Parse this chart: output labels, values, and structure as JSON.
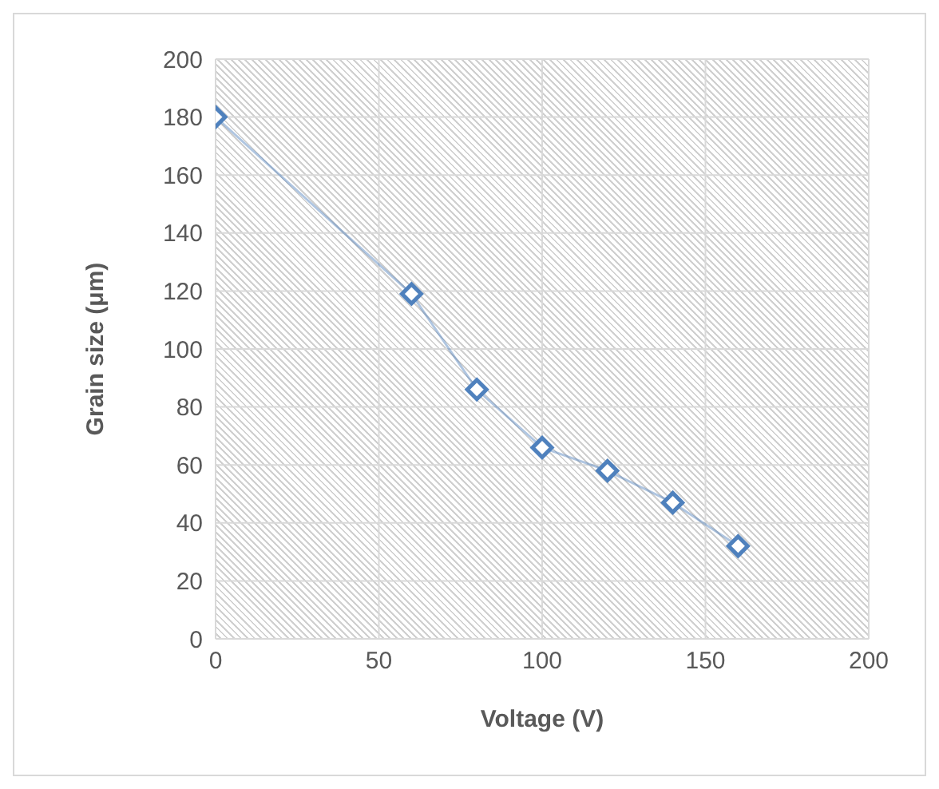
{
  "chart_data": {
    "type": "line",
    "xlabel": "Voltage (V)",
    "ylabel": "Grain size (μm)",
    "x": [
      0,
      60,
      80,
      100,
      120,
      140,
      160
    ],
    "series": [
      {
        "color": "#4f81bd",
        "values": [
          180,
          119,
          86,
          66,
          58,
          47,
          32
        ]
      }
    ],
    "xlim": [
      0,
      200
    ],
    "xticks": [
      0,
      50,
      100,
      150,
      200
    ],
    "ylim": [
      0,
      200
    ],
    "yticks": [
      0,
      20,
      40,
      60,
      80,
      100,
      120,
      140,
      160,
      180,
      200
    ],
    "grid": true,
    "marker": "diamond",
    "legend": false
  }
}
